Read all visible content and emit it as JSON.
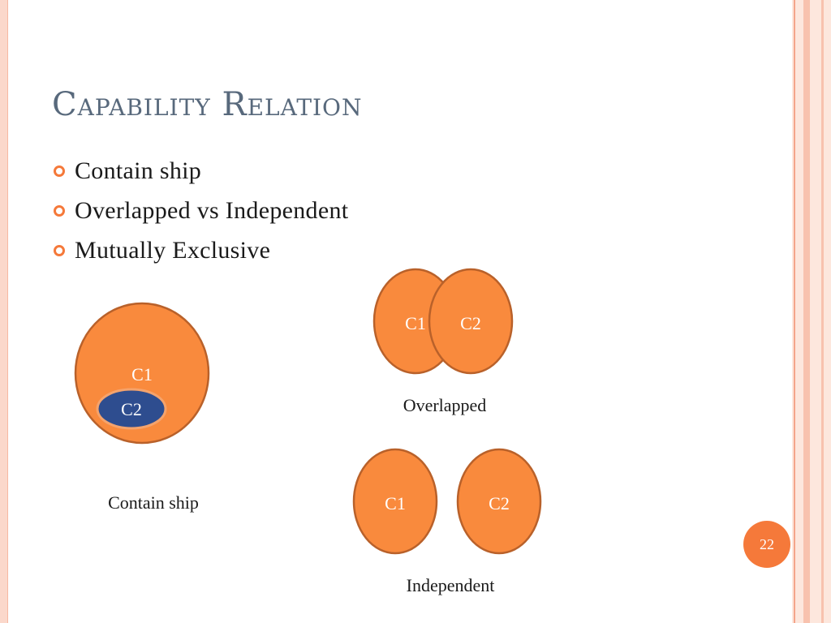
{
  "slide": {
    "title": "Capability Relation",
    "bullets": [
      "Contain ship",
      "Overlapped vs Independent",
      "Mutually Exclusive"
    ],
    "page_number": "22"
  },
  "diagram": {
    "colors": {
      "orange_fill": "#f98a3d",
      "orange_stroke": "#b9612a",
      "navy_fill": "#2e4d8f",
      "navy_stroke": "#f5a36c",
      "label": "#ffffff",
      "caption": "#1a1a1a"
    },
    "contain": {
      "outer": "C1",
      "inner": "C2",
      "caption": "Contain ship"
    },
    "overlapped": {
      "left": "C1",
      "right": "C2",
      "caption": "Overlapped"
    },
    "independent": {
      "left": "C1",
      "right": "C2",
      "caption": "Independent"
    }
  }
}
